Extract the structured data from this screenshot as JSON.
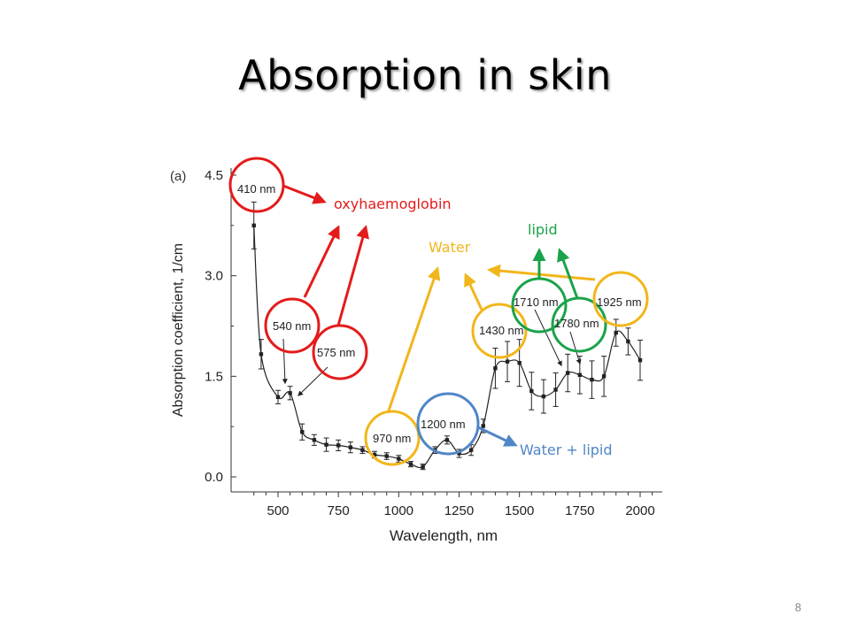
{
  "slide": {
    "title": "Absorption in skin",
    "page_number": "8"
  },
  "chart_data": {
    "type": "line",
    "panel_label": "(a)",
    "xlabel": "Wavelength, nm",
    "ylabel": "Absorption coefficient, 1/cm",
    "xlim": [
      330,
      2100
    ],
    "ylim": [
      -0.3,
      4.5
    ],
    "x_ticks": [
      500,
      750,
      1000,
      1250,
      1500,
      1750,
      2000
    ],
    "y_ticks": [
      0.0,
      1.5,
      3.0,
      4.5
    ],
    "y_tick_labels": [
      "0.0",
      "1.5",
      "3.0",
      "4.5"
    ],
    "x_tick_labels": [
      "500",
      "750",
      "1000",
      "1250",
      "1500",
      "1750",
      "2000"
    ],
    "series": [
      {
        "points": [
          {
            "x": 400,
            "y": 3.75,
            "err": 0.35
          },
          {
            "x": 430,
            "y": 1.83,
            "err": 0.22
          },
          {
            "x": 500,
            "y": 1.19,
            "err": 0.1
          },
          {
            "x": 550,
            "y": 1.25,
            "err": 0.1
          },
          {
            "x": 600,
            "y": 0.67,
            "err": 0.12
          },
          {
            "x": 650,
            "y": 0.55,
            "err": 0.08
          },
          {
            "x": 700,
            "y": 0.48,
            "err": 0.1
          },
          {
            "x": 750,
            "y": 0.47,
            "err": 0.08
          },
          {
            "x": 800,
            "y": 0.44,
            "err": 0.08
          },
          {
            "x": 850,
            "y": 0.4,
            "err": 0.05
          },
          {
            "x": 900,
            "y": 0.33,
            "err": 0.05
          },
          {
            "x": 950,
            "y": 0.31,
            "err": 0.05
          },
          {
            "x": 1000,
            "y": 0.27,
            "err": 0.05
          },
          {
            "x": 1050,
            "y": 0.19,
            "err": 0.04
          },
          {
            "x": 1100,
            "y": 0.15,
            "err": 0.04
          },
          {
            "x": 1150,
            "y": 0.4,
            "err": 0.05
          },
          {
            "x": 1200,
            "y": 0.55,
            "err": 0.06
          },
          {
            "x": 1250,
            "y": 0.35,
            "err": 0.06
          },
          {
            "x": 1300,
            "y": 0.4,
            "err": 0.08
          },
          {
            "x": 1350,
            "y": 0.76,
            "err": 0.1
          },
          {
            "x": 1400,
            "y": 1.62,
            "err": 0.3
          },
          {
            "x": 1450,
            "y": 1.72,
            "err": 0.3
          },
          {
            "x": 1500,
            "y": 1.7,
            "err": 0.35
          },
          {
            "x": 1550,
            "y": 1.28,
            "err": 0.28
          },
          {
            "x": 1600,
            "y": 1.2,
            "err": 0.25
          },
          {
            "x": 1650,
            "y": 1.3,
            "err": 0.25
          },
          {
            "x": 1700,
            "y": 1.55,
            "err": 0.28
          },
          {
            "x": 1750,
            "y": 1.52,
            "err": 0.28
          },
          {
            "x": 1800,
            "y": 1.45,
            "err": 0.28
          },
          {
            "x": 1850,
            "y": 1.5,
            "err": 0.3
          },
          {
            "x": 1900,
            "y": 2.15,
            "err": 0.2
          },
          {
            "x": 1950,
            "y": 2.02,
            "err": 0.2
          },
          {
            "x": 2000,
            "y": 1.74,
            "err": 0.3
          }
        ]
      }
    ],
    "annotations": [
      {
        "text": "410 nm",
        "color": "#e41b1b"
      },
      {
        "text": "540 nm",
        "color": "#e41b1b"
      },
      {
        "text": "575 nm",
        "color": "#e41b1b"
      },
      {
        "text": "970 nm",
        "color": "#f2b61b"
      },
      {
        "text": "1200 nm",
        "color": "#4f86c6"
      },
      {
        "text": "1430 nm",
        "color": "#f2b61b"
      },
      {
        "text": "1710 nm",
        "color": "#1aa34a"
      },
      {
        "text": "1780 nm",
        "color": "#1aa34a"
      },
      {
        "text": "1925 nm",
        "color": "#f2b61b"
      }
    ],
    "labels": [
      {
        "text": "oxyhaemoglobin",
        "color": "#e41b1b"
      },
      {
        "text": "lipid",
        "color": "#1aa34a"
      },
      {
        "text": "Water",
        "color": "#f2b61b"
      },
      {
        "text": "Water + lipid",
        "color": "#4f86c6"
      }
    ]
  }
}
